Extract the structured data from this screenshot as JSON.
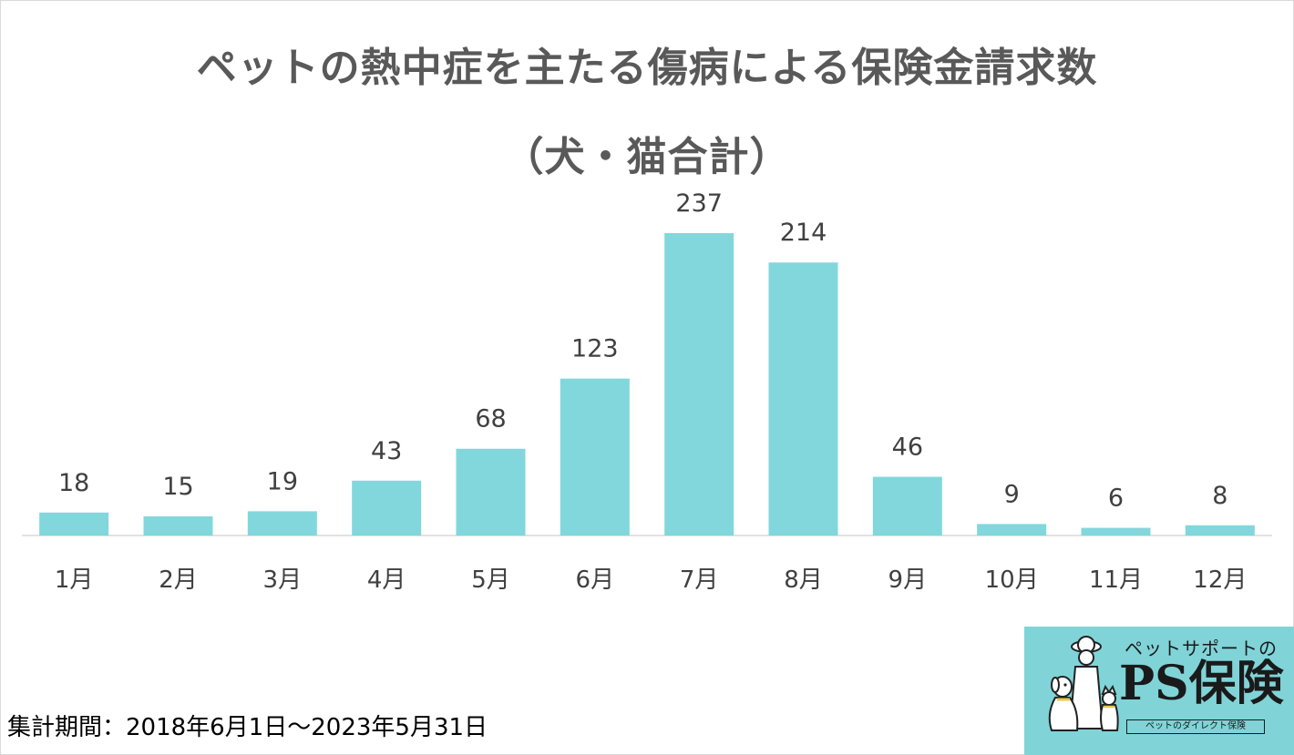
{
  "chart_data": {
    "type": "bar",
    "title": "ペットの熱中症を主たる傷病による保険金請求数",
    "subtitle": "（犬・猫合計）",
    "categories": [
      "1月",
      "2月",
      "3月",
      "4月",
      "5月",
      "6月",
      "7月",
      "8月",
      "9月",
      "10月",
      "11月",
      "12月"
    ],
    "values": [
      18,
      15,
      19,
      43,
      68,
      123,
      237,
      214,
      46,
      9,
      6,
      8
    ],
    "xlabel": "",
    "ylabel": "",
    "ylim": [
      0,
      250
    ],
    "grid": false,
    "legend": "none",
    "bar_color": "#81d7dc",
    "axis_color": "#d9d9d9",
    "label_color": "#404040"
  },
  "footnote": "集計期間：2018年6月1日～2023年5月31日",
  "logo": {
    "tagline": "ペットサポートの",
    "name": "PS保険",
    "sub": "ペットのダイレクト保険",
    "bg_color": "#80d4d8"
  }
}
